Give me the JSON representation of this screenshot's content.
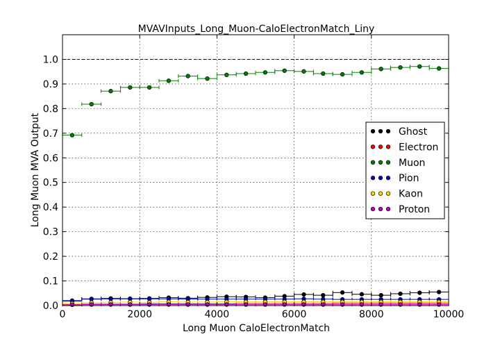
{
  "chart_data": {
    "type": "scatter",
    "title": "MVAVInputs_Long_Muon-CaloElectronMatch_Liny",
    "xlabel": "Long Muon CaloElectronMatch",
    "ylabel": "Long Muon MVA Output",
    "xlim": [
      0,
      10000
    ],
    "ylim": [
      0,
      1.1
    ],
    "x_ticks": [
      "0",
      "2000",
      "4000",
      "6000",
      "8000",
      "10000"
    ],
    "y_ticks": [
      "0.0",
      "0.1",
      "0.2",
      "0.3",
      "0.4",
      "0.5",
      "0.6",
      "0.7",
      "0.8",
      "0.9",
      "1.0"
    ],
    "grid": true,
    "reference_line_y": 1.0,
    "legend_position": "right",
    "bin_width": 500,
    "x": [
      250,
      750,
      1250,
      1750,
      2250,
      2750,
      3250,
      3750,
      4250,
      4750,
      5250,
      5750,
      6250,
      6750,
      7250,
      7750,
      8250,
      8750,
      9250,
      9750
    ],
    "series": [
      {
        "name": "Ghost",
        "color": "#000000",
        "values": [
          0.018,
          0.027,
          0.029,
          0.028,
          0.029,
          0.032,
          0.03,
          0.033,
          0.036,
          0.035,
          0.032,
          0.038,
          0.045,
          0.042,
          0.053,
          0.046,
          0.042,
          0.048,
          0.052,
          0.055
        ]
      },
      {
        "name": "Electron",
        "color": "#ff0000",
        "values": [
          0.004,
          0.006,
          0.006,
          0.006,
          0.007,
          0.007,
          0.007,
          0.007,
          0.007,
          0.008,
          0.008,
          0.008,
          0.008,
          0.008,
          0.009,
          0.009,
          0.009,
          0.009,
          0.009,
          0.009
        ]
      },
      {
        "name": "Muon",
        "color": "#008000",
        "values": [
          0.692,
          0.818,
          0.871,
          0.886,
          0.886,
          0.913,
          0.932,
          0.922,
          0.937,
          0.942,
          0.947,
          0.954,
          0.951,
          0.942,
          0.939,
          0.947,
          0.961,
          0.967,
          0.971,
          0.963
        ]
      },
      {
        "name": "Pion",
        "color": "#0000bf",
        "values": [
          0.02,
          0.026,
          0.027,
          0.027,
          0.027,
          0.027,
          0.026,
          0.026,
          0.026,
          0.026,
          0.026,
          0.026,
          0.027,
          0.026,
          0.025,
          0.025,
          0.025,
          0.025,
          0.025,
          0.025
        ]
      },
      {
        "name": "Kaon",
        "color": "#ffd700",
        "values": [
          0.009,
          0.012,
          0.013,
          0.014,
          0.013,
          0.015,
          0.014,
          0.014,
          0.015,
          0.015,
          0.015,
          0.015,
          0.015,
          0.015,
          0.015,
          0.015,
          0.015,
          0.015,
          0.015,
          0.015
        ]
      },
      {
        "name": "Proton",
        "color": "#bf00bf",
        "values": [
          0.003,
          0.004,
          0.004,
          0.004,
          0.004,
          0.004,
          0.004,
          0.004,
          0.004,
          0.004,
          0.004,
          0.004,
          0.004,
          0.004,
          0.004,
          0.004,
          0.004,
          0.004,
          0.004,
          0.004
        ]
      }
    ]
  }
}
